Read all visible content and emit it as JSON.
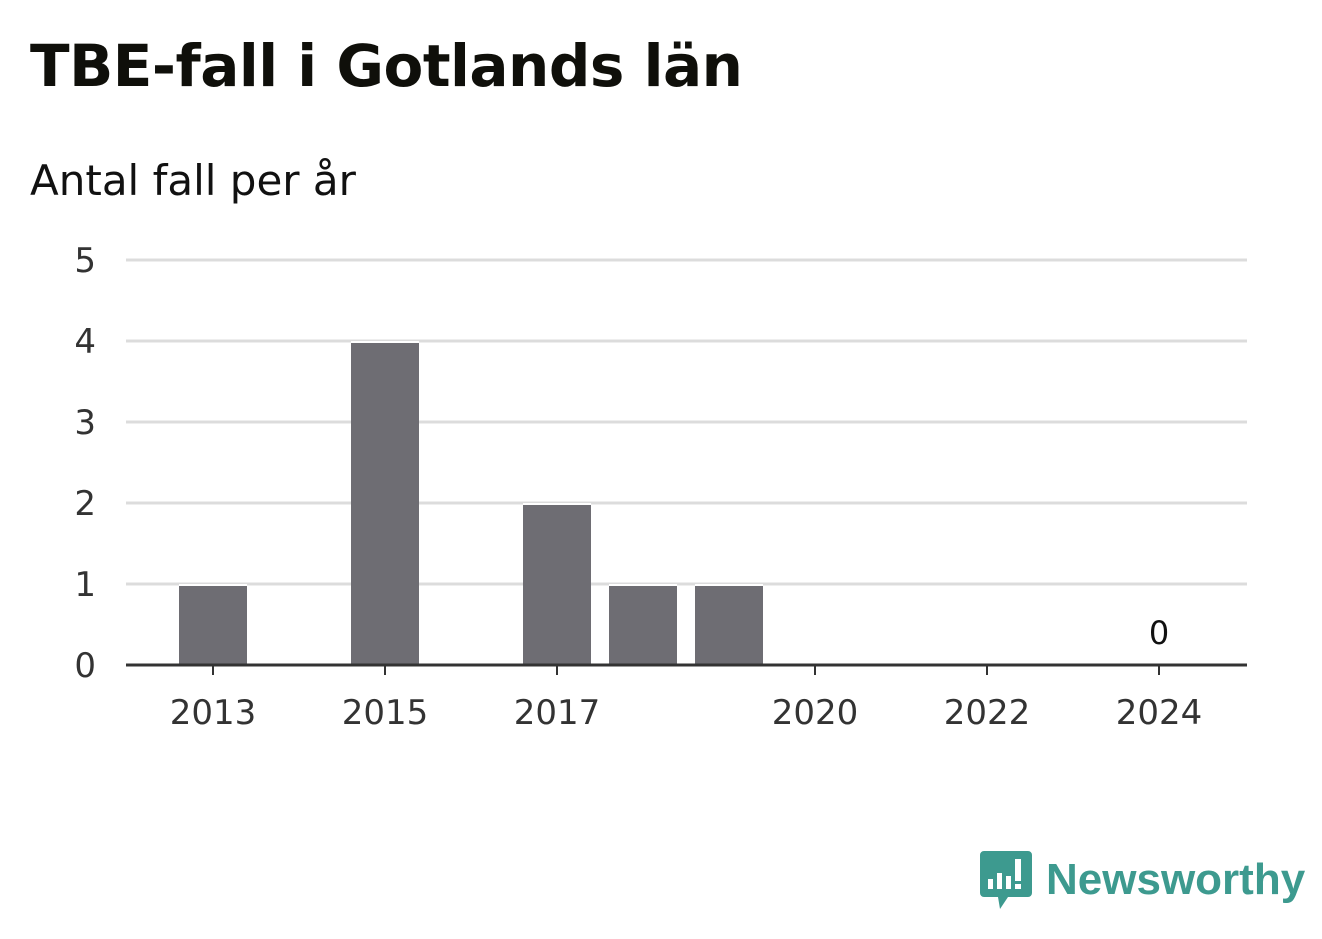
{
  "chart_data": {
    "type": "bar",
    "title": "TBE-fall i Gotlands län",
    "subtitle": "Antal fall per år",
    "x": [
      2013,
      2014,
      2015,
      2016,
      2017,
      2018,
      2019,
      2020,
      2021,
      2022,
      2023,
      2024
    ],
    "values": [
      1,
      0,
      4,
      0,
      2,
      1,
      1,
      0,
      0,
      0,
      0,
      0
    ],
    "x_tick_labels": [
      "2013",
      "2015",
      "2017",
      "2020",
      "2022",
      "2024"
    ],
    "y_ticks": [
      0,
      1,
      2,
      3,
      4,
      5
    ],
    "ylim": [
      0,
      5
    ],
    "grid": true,
    "bar_color": "#6e6d73",
    "annotations": [
      {
        "x": 2024,
        "text": "0"
      }
    ]
  },
  "brand": {
    "name": "Newsworthy",
    "color": "#3d9a8f",
    "icon": "bar-chart-speech-bubble-icon"
  }
}
